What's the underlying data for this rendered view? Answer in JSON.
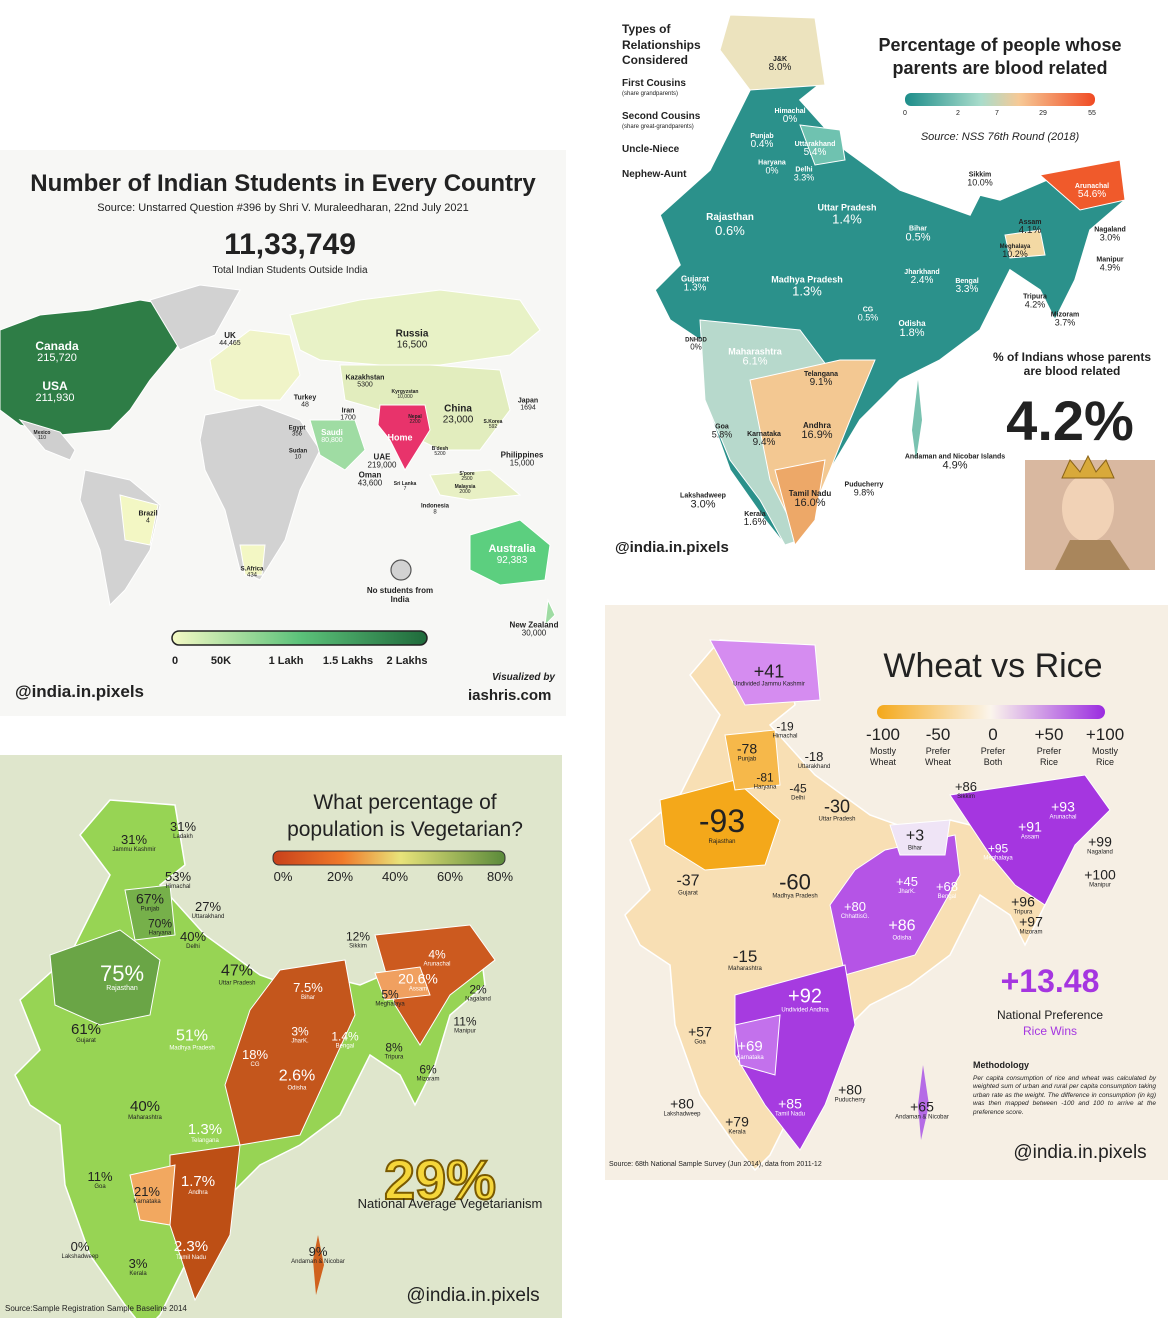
{
  "students": {
    "title": "Number of Indian Students in Every Country",
    "source": "Source: Unstarred Question #396 by Shri V. Muraleedharan, 22nd July 2021",
    "total": "11,33,749",
    "total_label": "Total Indian Students Outside India",
    "regions": [
      {
        "name": "Canada",
        "value": "215,720"
      },
      {
        "name": "USA",
        "value": "211,930"
      },
      {
        "name": "Russia",
        "value": "16,500"
      },
      {
        "name": "UK",
        "value": "44,465"
      },
      {
        "name": "Kazakhstan",
        "value": "5300"
      },
      {
        "name": "Kyrgyzstan",
        "value": "10,000"
      },
      {
        "name": "Iran",
        "value": "1700"
      },
      {
        "name": "Turkey",
        "value": "48"
      },
      {
        "name": "Saudi",
        "value": "80,800"
      },
      {
        "name": "UAE",
        "value": "219,000"
      },
      {
        "name": "Oman",
        "value": "43,600"
      },
      {
        "name": "Egypt",
        "value": "356"
      },
      {
        "name": "Sudan",
        "value": "10"
      },
      {
        "name": "China",
        "value": "23,000"
      },
      {
        "name": "Nepal",
        "value": "2200"
      },
      {
        "name": "Japan",
        "value": "1694"
      },
      {
        "name": "S.Korea",
        "value": "592"
      },
      {
        "name": "Philippines",
        "value": "15,000"
      },
      {
        "name": "Brazil",
        "value": "4"
      },
      {
        "name": "S.Africa",
        "value": "434"
      },
      {
        "name": "Australia",
        "value": "92,383"
      },
      {
        "name": "New Zealand",
        "value": "30,000"
      },
      {
        "name": "Mexico",
        "value": "110"
      },
      {
        "name": "Indonesia",
        "value": "8"
      },
      {
        "name": "Sri Lanka",
        "value": "7"
      },
      {
        "name": "B'desh",
        "value": "5200"
      },
      {
        "name": "S'pore",
        "value": "2500"
      },
      {
        "name": "Malaysia",
        "value": "2000"
      },
      {
        "name": "Home"
      }
    ],
    "no_data_label": "No students from India",
    "scale": [
      "0",
      "50K",
      "1 Lakh",
      "1.5 Lakhs",
      "2 Lakhs"
    ],
    "handle": "@india.in.pixels",
    "credit": "Visualized by",
    "site": "iashris.com"
  },
  "consanguinity": {
    "title": "Percentage of people whose parents are blood related",
    "scale": [
      "0",
      "2",
      "7",
      "29",
      "55"
    ],
    "source": "Source: NSS 76th Round (2018)",
    "types_title": "Types of Relationships Considered",
    "types": [
      {
        "name": "First Cousins",
        "note": "(share grandparents)"
      },
      {
        "name": "Second Cousins",
        "note": "(share great-grandparents)"
      },
      {
        "name": "Uncle-Niece"
      },
      {
        "name": "Nephew-Aunt"
      }
    ],
    "regions": [
      {
        "name": "J&K",
        "value": "8.0%"
      },
      {
        "name": "Himachal",
        "value": "0%"
      },
      {
        "name": "Punjab",
        "value": "0.4%"
      },
      {
        "name": "Uttarakhand",
        "value": "5.4%"
      },
      {
        "name": "Haryana",
        "value": "0%"
      },
      {
        "name": "Delhi",
        "value": "3.3%"
      },
      {
        "name": "Rajasthan",
        "value": "0.6%"
      },
      {
        "name": "Uttar Pradesh",
        "value": "1.4%"
      },
      {
        "name": "Bihar",
        "value": "0.5%"
      },
      {
        "name": "Sikkim",
        "value": "10.0%"
      },
      {
        "name": "Arunachal",
        "value": "54.6%"
      },
      {
        "name": "Assam",
        "value": "4.1%"
      },
      {
        "name": "Meghalaya",
        "value": "10.2%"
      },
      {
        "name": "Nagaland",
        "value": "3.0%"
      },
      {
        "name": "Manipur",
        "value": "4.9%"
      },
      {
        "name": "Tripura",
        "value": "4.2%"
      },
      {
        "name": "Mizoram",
        "value": "3.7%"
      },
      {
        "name": "Gujarat",
        "value": "1.3%"
      },
      {
        "name": "Madhya Pradesh",
        "value": "1.3%"
      },
      {
        "name": "Jharkhand",
        "value": "2.4%"
      },
      {
        "name": "Bengal",
        "value": "3.3%"
      },
      {
        "name": "CG",
        "value": "0.5%"
      },
      {
        "name": "Odisha",
        "value": "1.8%"
      },
      {
        "name": "DNHDD",
        "value": "0%"
      },
      {
        "name": "Maharashtra",
        "value": "6.1%"
      },
      {
        "name": "Telangana",
        "value": "9.1%"
      },
      {
        "name": "Goa",
        "value": "5.8%"
      },
      {
        "name": "Karnataka",
        "value": "9.4%"
      },
      {
        "name": "Andhra",
        "value": "16.9%"
      },
      {
        "name": "Andaman and Nicobar Islands",
        "value": "4.9%"
      },
      {
        "name": "Lakshadweep",
        "value": "3.0%"
      },
      {
        "name": "Kerala",
        "value": "1.6%"
      },
      {
        "name": "Tamil Nadu",
        "value": "16.0%"
      },
      {
        "name": "Puducherry",
        "value": "9.8%"
      }
    ],
    "national_label": "% of Indians whose parents are blood related",
    "national": "4.2%",
    "handle": "@india.in.pixels"
  },
  "vegetarian": {
    "title": "What percentage of population is Vegetarian?",
    "scale": [
      "0%",
      "20%",
      "40%",
      "60%",
      "80%"
    ],
    "regions": [
      {
        "name": "Jammu Kashmir",
        "value": "31%"
      },
      {
        "name": "Ladakh",
        "value": "31%"
      },
      {
        "name": "Himachal",
        "value": "53%"
      },
      {
        "name": "Punjab",
        "value": "67%"
      },
      {
        "name": "Uttarakhand",
        "value": "27%"
      },
      {
        "name": "Haryana",
        "value": "70%"
      },
      {
        "name": "Delhi",
        "value": "40%"
      },
      {
        "name": "Rajasthan",
        "value": "75%"
      },
      {
        "name": "Uttar Pradesh",
        "value": "47%"
      },
      {
        "name": "Sikkim",
        "value": "12%"
      },
      {
        "name": "Arunachal",
        "value": "4%"
      },
      {
        "name": "Bihar",
        "value": "7.5%"
      },
      {
        "name": "Assam",
        "value": "20.6%"
      },
      {
        "name": "Meghalaya",
        "value": "5%"
      },
      {
        "name": "Nagaland",
        "value": "2%"
      },
      {
        "name": "Gujarat",
        "value": "61%"
      },
      {
        "name": "Madhya Pradesh",
        "value": "51%"
      },
      {
        "name": "JharK.",
        "value": "3%"
      },
      {
        "name": "Bengal",
        "value": "1.4%"
      },
      {
        "name": "Manipur",
        "value": "11%"
      },
      {
        "name": "Tripura",
        "value": "8%"
      },
      {
        "name": "CG",
        "value": "18%"
      },
      {
        "name": "Odisha",
        "value": "2.6%"
      },
      {
        "name": "Mizoram",
        "value": "6%"
      },
      {
        "name": "Maharashtra",
        "value": "40%"
      },
      {
        "name": "Telangana",
        "value": "1.3%"
      },
      {
        "name": "Goa",
        "value": "11%"
      },
      {
        "name": "Karnataka",
        "value": "21%"
      },
      {
        "name": "Andhra",
        "value": "1.7%"
      },
      {
        "name": "Lakshadweep",
        "value": "0%"
      },
      {
        "name": "Kerala",
        "value": "3%"
      },
      {
        "name": "Tamil Nadu",
        "value": "2.3%"
      },
      {
        "name": "Andaman & Nicobar",
        "value": "9%"
      }
    ],
    "national": "29%",
    "national_label": "National Average Vegetarianism",
    "handle": "@india.in.pixels",
    "source": "Source:Sample Registration Sample Baseline 2014"
  },
  "wheat_rice": {
    "title": "Wheat vs Rice",
    "scale": [
      {
        "value": "-100",
        "label": "Mostly Wheat"
      },
      {
        "value": "-50",
        "label": "Prefer Wheat"
      },
      {
        "value": "0",
        "label": "Prefer Both"
      },
      {
        "value": "+50",
        "label": "Prefer Rice"
      },
      {
        "value": "+100",
        "label": "Mostly Rice"
      }
    ],
    "regions": [
      {
        "name": "Undivided Jammu Kashmir",
        "value": "+41"
      },
      {
        "name": "Himachal",
        "value": "-19"
      },
      {
        "name": "Punjab",
        "value": "-78"
      },
      {
        "name": "Uttarakhand",
        "value": "-18"
      },
      {
        "name": "Haryana",
        "value": "-81"
      },
      {
        "name": "Delhi",
        "value": "-45"
      },
      {
        "name": "Sikkim",
        "value": "+86"
      },
      {
        "name": "Arunachal",
        "value": "+93"
      },
      {
        "name": "Rajasthan",
        "value": "-93"
      },
      {
        "name": "Uttar Pradesh",
        "value": "-30"
      },
      {
        "name": "Bihar",
        "value": "+3"
      },
      {
        "name": "Assam",
        "value": "+91"
      },
      {
        "name": "Meghalaya",
        "value": "+95"
      },
      {
        "name": "Nagaland",
        "value": "+99"
      },
      {
        "name": "Gujarat",
        "value": "-37"
      },
      {
        "name": "Madhya Pradesh",
        "value": "-60"
      },
      {
        "name": "JharK.",
        "value": "+45"
      },
      {
        "name": "Bengal",
        "value": "+68"
      },
      {
        "name": "Manipur",
        "value": "+100"
      },
      {
        "name": "ChhattisG.",
        "value": "+80"
      },
      {
        "name": "Odisha",
        "value": "+86"
      },
      {
        "name": "Tripura",
        "value": "+96"
      },
      {
        "name": "Mizoram",
        "value": "+97"
      },
      {
        "name": "Maharashtra",
        "value": "-15"
      },
      {
        "name": "Undivided Andhra",
        "value": "+92"
      },
      {
        "name": "Goa",
        "value": "+57"
      },
      {
        "name": "Karnataka",
        "value": "+69"
      },
      {
        "name": "Lakshadweep",
        "value": "+80"
      },
      {
        "name": "Kerala",
        "value": "+79"
      },
      {
        "name": "Tamil Nadu",
        "value": "+85"
      },
      {
        "name": "Puducherry",
        "value": "+80"
      },
      {
        "name": "Andaman & Nicobar",
        "value": "+65"
      }
    ],
    "national": "+13.48",
    "national_label": "National Preference",
    "verdict": "Rice Wins",
    "methodology_title": "Methodology",
    "methodology": "Per capita consumption of rice and wheat was calculated by weighted sum of urban and rural per capita consumption taking urban rate as the weight. The difference in consumption (in kg) was then mapped between -100 and 100 to arrive at the preference score.",
    "source": "Source: 68th National Sample Survey (Jun 2014), data from 2011-12",
    "handle": "@india.in.pixels"
  }
}
